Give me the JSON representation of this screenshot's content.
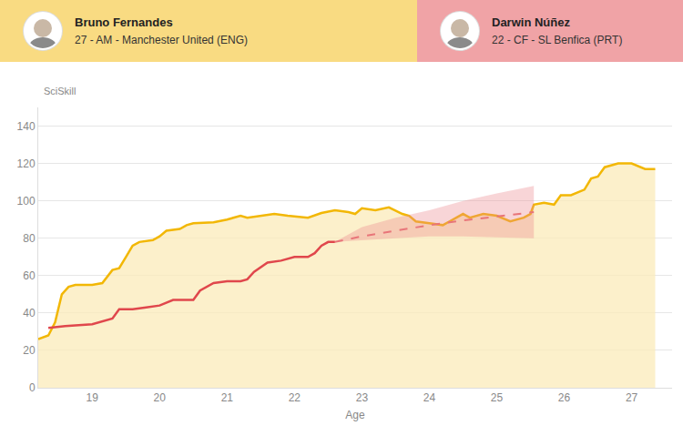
{
  "chart_data": {
    "type": "line",
    "x_label": "Age",
    "y_label": "SciSkill",
    "xlim": [
      18.2,
      27.6
    ],
    "xticks": [
      19,
      20,
      21,
      22,
      23,
      24,
      25,
      26,
      27
    ],
    "ylim": [
      0,
      150
    ],
    "yticks": [
      0,
      20,
      40,
      60,
      80,
      100,
      120,
      140
    ],
    "grid": true,
    "series": [
      {
        "name": "Bruno Fernandes",
        "detail": "27 - AM - Manchester United (ENG)",
        "type": "area",
        "color": "#f2b705",
        "x": [
          18.2,
          18.35,
          18.45,
          18.55,
          18.65,
          18.75,
          19.0,
          19.15,
          19.3,
          19.4,
          19.5,
          19.6,
          19.7,
          19.9,
          20.0,
          20.1,
          20.3,
          20.4,
          20.5,
          20.8,
          21.0,
          21.2,
          21.3,
          21.5,
          21.7,
          21.9,
          22.2,
          22.4,
          22.6,
          22.8,
          22.9,
          23.0,
          23.2,
          23.4,
          23.6,
          23.7,
          23.8,
          24.0,
          24.2,
          24.3,
          24.5,
          24.6,
          24.8,
          25.0,
          25.2,
          25.4,
          25.5,
          25.55,
          25.7,
          25.85,
          25.95,
          26.1,
          26.3,
          26.4,
          26.5,
          26.6,
          26.7,
          26.8,
          27.0,
          27.2,
          27.35
        ],
        "values": [
          26,
          28,
          35,
          50,
          54,
          55,
          55,
          56,
          63,
          64,
          70,
          76,
          78,
          79,
          81,
          84,
          85,
          87,
          88,
          88.5,
          90,
          92,
          91,
          92,
          93,
          92,
          91,
          93.5,
          95,
          94,
          93,
          96,
          95,
          96.5,
          93,
          92,
          89,
          88,
          87,
          89,
          93,
          91,
          93,
          92,
          89,
          91,
          93,
          98,
          99,
          98,
          103,
          103,
          106,
          112,
          113,
          118,
          119,
          120,
          120,
          117,
          117
        ]
      },
      {
        "name": "Darwin Núñez",
        "detail": "22 - CF - SL Benfica (PRT)",
        "type": "line",
        "color": "#e0474c",
        "x": [
          18.35,
          18.6,
          19.0,
          19.1,
          19.3,
          19.4,
          19.6,
          19.8,
          20.0,
          20.2,
          20.5,
          20.6,
          20.8,
          21.0,
          21.2,
          21.3,
          21.4,
          21.6,
          21.8,
          22.0,
          22.2,
          22.3,
          22.4,
          22.5,
          22.6
        ],
        "values": [
          32,
          33,
          34,
          35,
          37,
          42,
          42,
          43,
          44,
          47,
          47,
          52,
          56,
          57,
          57,
          58,
          62,
          67,
          68,
          70,
          70,
          72,
          76,
          78,
          78
        ],
        "projection": {
          "line_style": "dashed",
          "x": [
            22.6,
            23.0,
            23.5,
            24.0,
            24.5,
            25.0,
            25.55
          ],
          "values": [
            78,
            81,
            84,
            87,
            89.5,
            91.5,
            94
          ],
          "lower": [
            78,
            79,
            80,
            81,
            81,
            80.5,
            80
          ],
          "upper": [
            78,
            86,
            91,
            95,
            100,
            104,
            108
          ]
        }
      }
    ]
  }
}
